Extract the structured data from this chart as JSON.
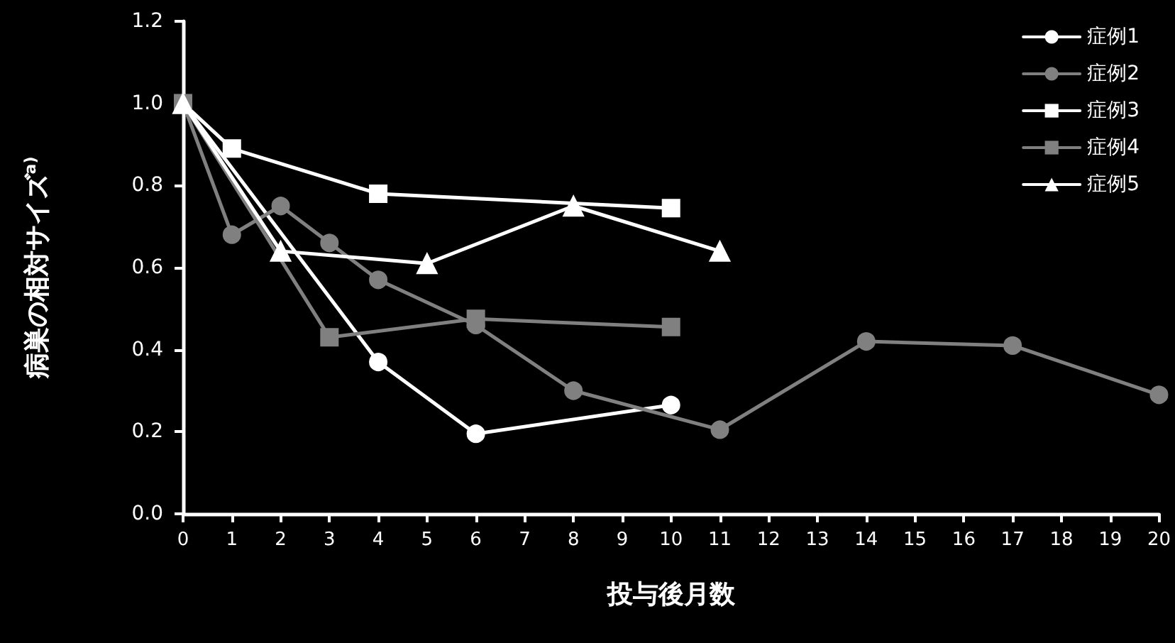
{
  "chart_data": {
    "type": "line",
    "xlabel": "投与後月数",
    "ylabel": "病巣の相対サイズ$^{a)}$",
    "xlim": [
      0,
      20
    ],
    "xticks": [
      0,
      1,
      2,
      3,
      4,
      5,
      6,
      7,
      8,
      9,
      10,
      11,
      12,
      13,
      14,
      15,
      16,
      17,
      18,
      19,
      20
    ],
    "ylim": [
      0,
      1.2
    ],
    "yticks": [
      {
        "value": 0,
        "label": "0.0"
      },
      {
        "value": 0.2,
        "label": "0.2"
      },
      {
        "value": 0.4,
        "label": "0.4"
      },
      {
        "value": 0.6,
        "label": "0.6"
      },
      {
        "value": 0.8,
        "label": "0.8"
      },
      {
        "value": 1,
        "label": "1.0"
      },
      {
        "value": 1.2,
        "label": "1.2"
      }
    ],
    "grid": false,
    "legend": "top right",
    "series": [
      {
        "name": "症例1",
        "color": "#ffffff",
        "marker": "circle",
        "x": [
          0,
          4,
          6,
          10
        ],
        "values": [
          1.0,
          0.37,
          0.195,
          0.265
        ]
      },
      {
        "name": "症例2",
        "color": "#808080",
        "marker": "circle",
        "x": [
          0,
          1,
          2,
          3,
          4,
          6,
          8,
          11,
          14,
          17,
          20
        ],
        "values": [
          1.0,
          0.68,
          0.75,
          0.66,
          0.57,
          0.46,
          0.3,
          0.205,
          0.42,
          0.41,
          0.29
        ]
      },
      {
        "name": "症例3",
        "color": "#ffffff",
        "marker": "square",
        "x": [
          0,
          1,
          4,
          10
        ],
        "values": [
          1.0,
          0.89,
          0.78,
          0.745
        ]
      },
      {
        "name": "症例4",
        "color": "#808080",
        "marker": "square",
        "x": [
          0,
          3,
          6,
          10
        ],
        "values": [
          1.0,
          0.43,
          0.475,
          0.455
        ]
      },
      {
        "name": "症例5",
        "color": "#ffffff",
        "marker": "triangle",
        "x": [
          0,
          2,
          5,
          8,
          11
        ],
        "values": [
          1.0,
          0.64,
          0.61,
          0.75,
          0.64
        ]
      }
    ]
  }
}
